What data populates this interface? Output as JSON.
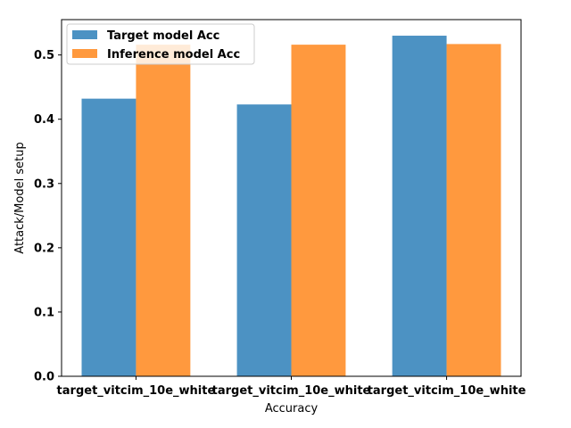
{
  "chart_data": {
    "type": "bar",
    "categories": [
      "target_vitcim_10e_white",
      "target_vitcim_10e_white",
      "target_vitcim_10e_white"
    ],
    "series": [
      {
        "name": "Target model Acc",
        "values": [
          0.432,
          0.423,
          0.53
        ],
        "color": "#1f77b4"
      },
      {
        "name": "Inference model Acc",
        "values": [
          0.516,
          0.516,
          0.517
        ],
        "color": "#ff7f0e"
      }
    ],
    "xlabel": "Accuracy",
    "ylabel": "Attack/Model setup",
    "ylim": [
      0,
      0.555
    ],
    "yticks": [
      0.0,
      0.1,
      0.2,
      0.3,
      0.4,
      0.5
    ],
    "ytick_labels": [
      "0.0",
      "0.1",
      "0.2",
      "0.3",
      "0.4",
      "0.5"
    ],
    "legend_position": "top-left",
    "grid": false
  }
}
